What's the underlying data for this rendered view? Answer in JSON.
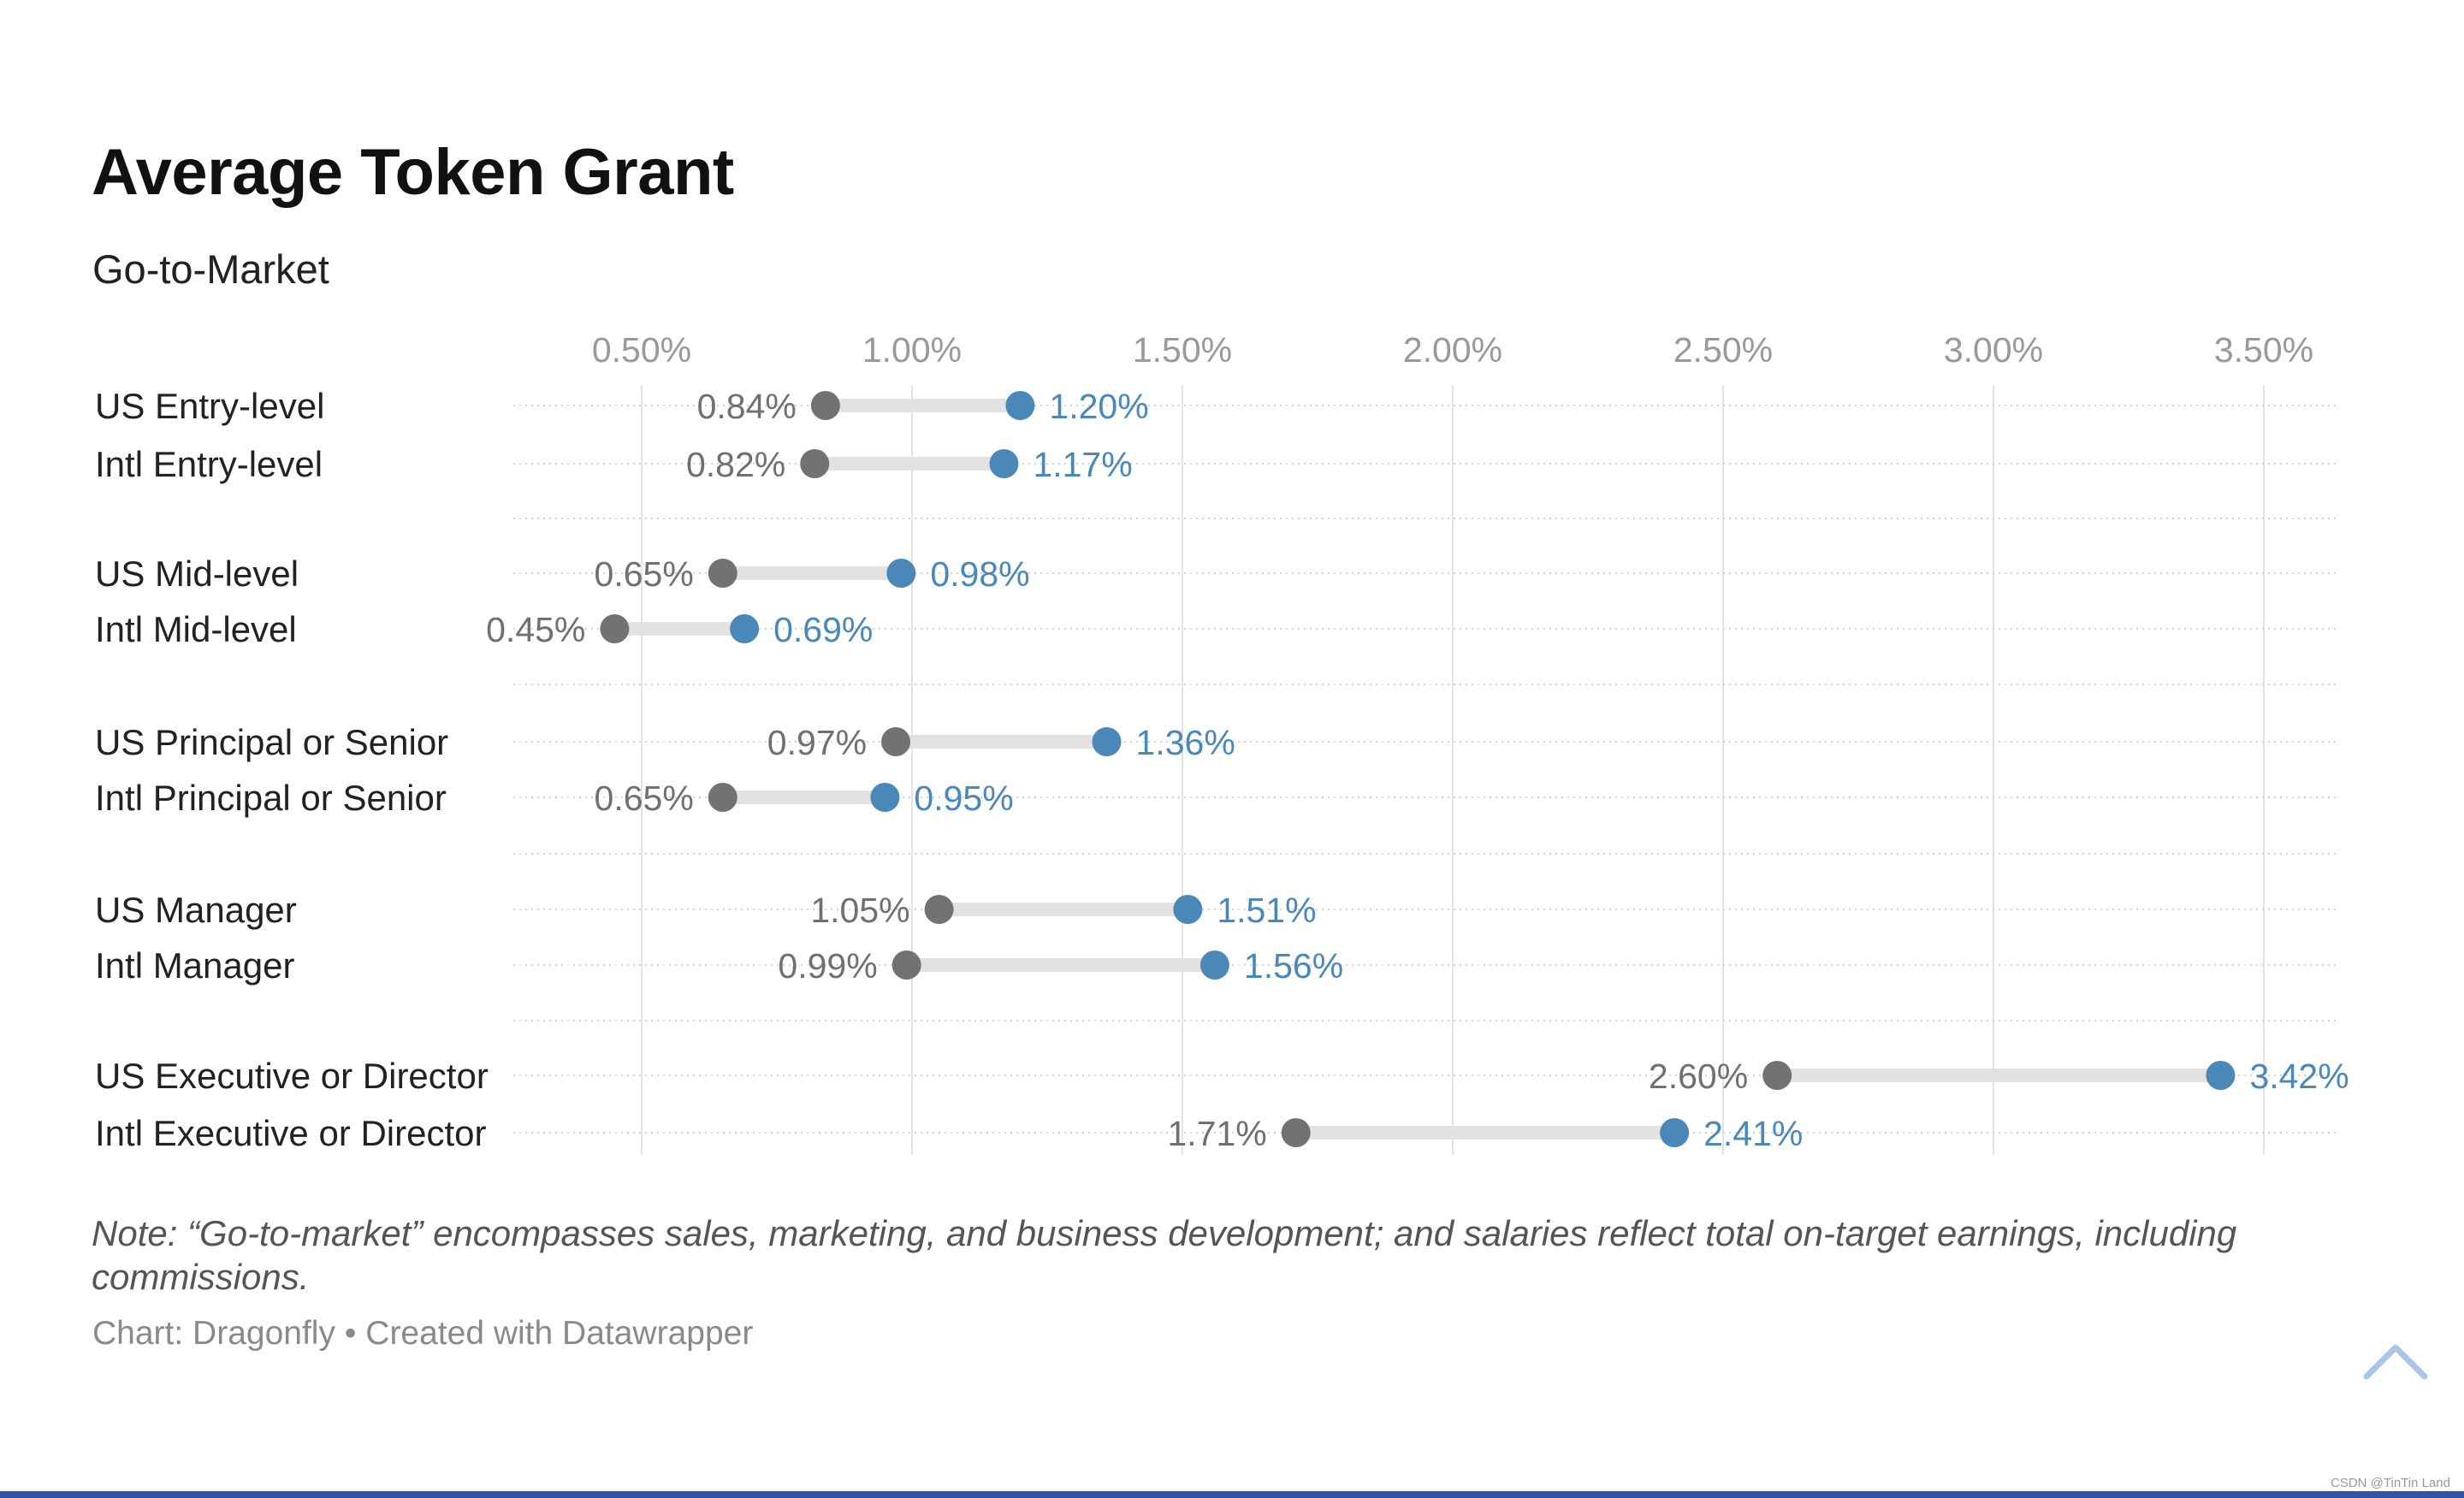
{
  "chart_data": {
    "type": "dot-range",
    "title": "Average Token Grant",
    "subtitle": "Go-to-Market",
    "x_ticks": [
      "0.50%",
      "1.00%",
      "1.50%",
      "2.00%",
      "2.50%",
      "3.00%",
      "3.50%"
    ],
    "xlim": [
      0.26,
      3.65
    ],
    "grid": "vertical gridlines",
    "colors": {
      "low": "#727272",
      "high": "#4a88b9",
      "connector": "#e2e2e2"
    },
    "rows": [
      {
        "label": "US Entry-level",
        "low": 0.84,
        "low_label": "0.84%",
        "high": 1.2,
        "high_label": "1.20%"
      },
      {
        "label": "Intl Entry-level",
        "low": 0.82,
        "low_label": "0.82%",
        "high": 1.17,
        "high_label": "1.17%"
      },
      {
        "label": "US Mid-level",
        "low": 0.65,
        "low_label": "0.65%",
        "high": 0.98,
        "high_label": "0.98%"
      },
      {
        "label": "Intl Mid-level",
        "low": 0.45,
        "low_label": "0.45%",
        "high": 0.69,
        "high_label": "0.69%"
      },
      {
        "label": "US Principal or Senior",
        "low": 0.97,
        "low_label": "0.97%",
        "high": 1.36,
        "high_label": "1.36%"
      },
      {
        "label": "Intl Principal or Senior",
        "low": 0.65,
        "low_label": "0.65%",
        "high": 0.95,
        "high_label": "0.95%"
      },
      {
        "label": "US Manager",
        "low": 1.05,
        "low_label": "1.05%",
        "high": 1.51,
        "high_label": "1.51%"
      },
      {
        "label": "Intl Manager",
        "low": 0.99,
        "low_label": "0.99%",
        "high": 1.56,
        "high_label": "1.56%"
      },
      {
        "label": "US Executive or Director",
        "low": 2.6,
        "low_label": "2.60%",
        "high": 3.42,
        "high_label": "3.42%"
      },
      {
        "label": "Intl Executive or Director",
        "low": 1.71,
        "low_label": "1.71%",
        "high": 2.41,
        "high_label": "2.41%"
      }
    ],
    "note": "Note: “Go-to-market” encompasses sales, marketing, and business development; and salaries reflect total on-target earnings, including commissions.",
    "credit": "Chart: Dragonfly • Created with Datawrapper"
  },
  "scroll_top_icon": "chevron-up-icon",
  "watermark": "CSDN @TinTin Land"
}
